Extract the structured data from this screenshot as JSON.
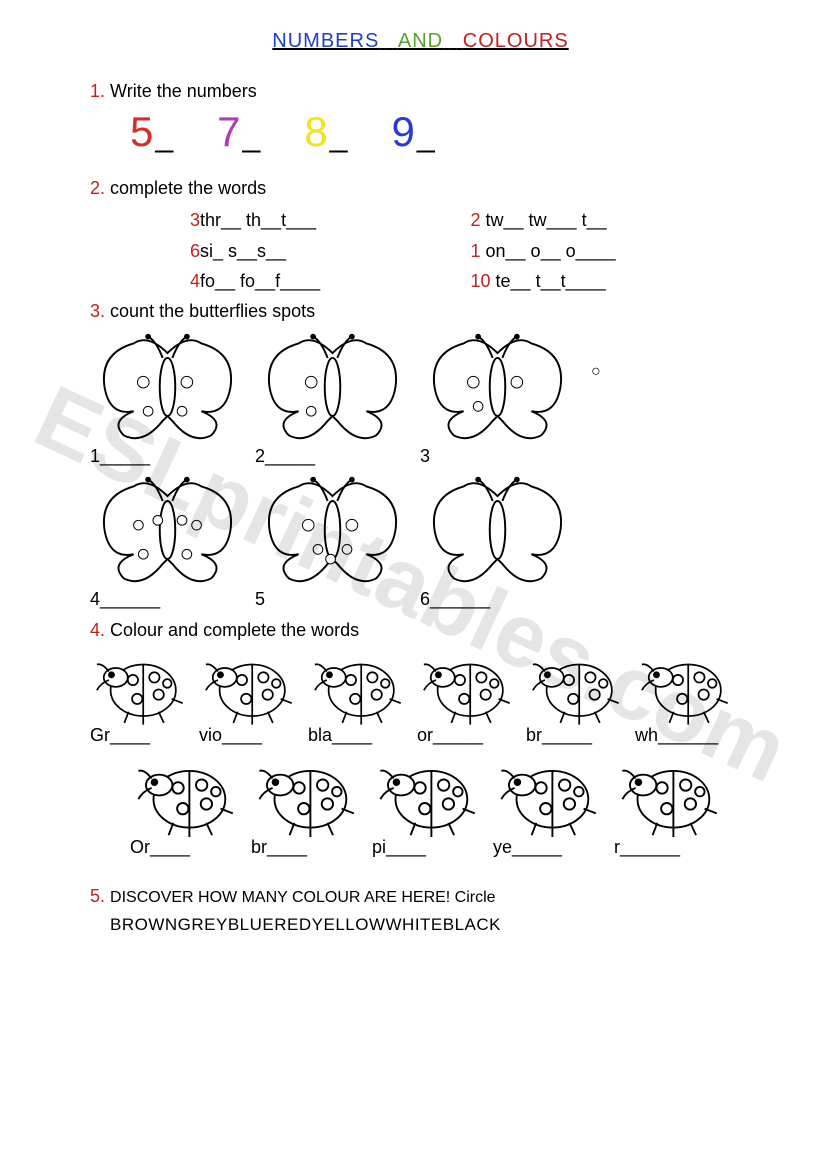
{
  "title": {
    "w1": "NUMBERS",
    "w2": "AND",
    "w3": "COLOURS"
  },
  "ex1": {
    "num": "1.",
    "text": "Write the numbers",
    "numbers": [
      {
        "d": "5",
        "color": "#d62c2c"
      },
      {
        "d": "7",
        "color": "#b23db2"
      },
      {
        "d": "8",
        "color": "#f2e31a"
      },
      {
        "d": "9",
        "color": "#2a3ad6"
      }
    ],
    "blank": "_"
  },
  "ex2": {
    "num": "2.",
    "text": "complete the words",
    "rows": [
      {
        "l": {
          "n": "3",
          "t": "thr__ th__t___"
        },
        "r": {
          "n": "2",
          "t": " tw__ tw___ t__"
        }
      },
      {
        "l": {
          "n": "6",
          "t": "si_ s__s__"
        },
        "r": {
          "n": "1",
          "t": " on__ o__ o____"
        }
      },
      {
        "l": {
          "n": "4",
          "t": "fo__ fo__f____"
        },
        "r": {
          "n": "10",
          "t": " te__ t__t____"
        }
      }
    ]
  },
  "ex3": {
    "num": "3.",
    "text": "count the butterflies spots",
    "row1": [
      {
        "label": "1_____",
        "spots": [
          [
            55,
            55,
            6
          ],
          [
            100,
            55,
            6
          ],
          [
            60,
            85,
            5
          ],
          [
            95,
            85,
            5
          ]
        ]
      },
      {
        "label": "2_____",
        "spots": [
          [
            58,
            55,
            6
          ],
          [
            58,
            85,
            5
          ]
        ]
      },
      {
        "label": "3",
        "spots": [
          [
            55,
            55,
            6
          ],
          [
            100,
            55,
            6
          ],
          [
            60,
            80,
            5
          ]
        ]
      }
    ],
    "loose_spot": "○",
    "row2": [
      {
        "label": "4______",
        "spots": [
          [
            50,
            55,
            5
          ],
          [
            70,
            50,
            5
          ],
          [
            95,
            50,
            5
          ],
          [
            110,
            55,
            5
          ],
          [
            55,
            85,
            5
          ],
          [
            100,
            85,
            5
          ]
        ]
      },
      {
        "label": "5",
        "spots": [
          [
            55,
            55,
            6
          ],
          [
            100,
            55,
            6
          ],
          [
            65,
            80,
            5
          ],
          [
            95,
            80,
            5
          ],
          [
            78,
            90,
            5
          ]
        ]
      },
      {
        "label": "6______",
        "spots": []
      }
    ]
  },
  "ex4": {
    "num": "4.",
    "text": "Colour and complete the words",
    "row1": [
      {
        "label": "Gr____"
      },
      {
        "label": "vio____"
      },
      {
        "label": "bla____"
      },
      {
        "label": "or_____"
      },
      {
        "label": "br_____"
      },
      {
        "label": "wh______"
      }
    ],
    "row2": [
      {
        "label": "Or____"
      },
      {
        "label": "br____"
      },
      {
        "label": "pi____"
      },
      {
        "label": "ye_____"
      },
      {
        "label": "r______"
      }
    ]
  },
  "ex5": {
    "num": "5.",
    "text": "DISCOVER HOW MANY COLOUR ARE HERE! Circle",
    "puzzle": "BROWNGREYBLUEREDYELLOWWHITEBLACK"
  },
  "watermark": "ESLprintables.com"
}
